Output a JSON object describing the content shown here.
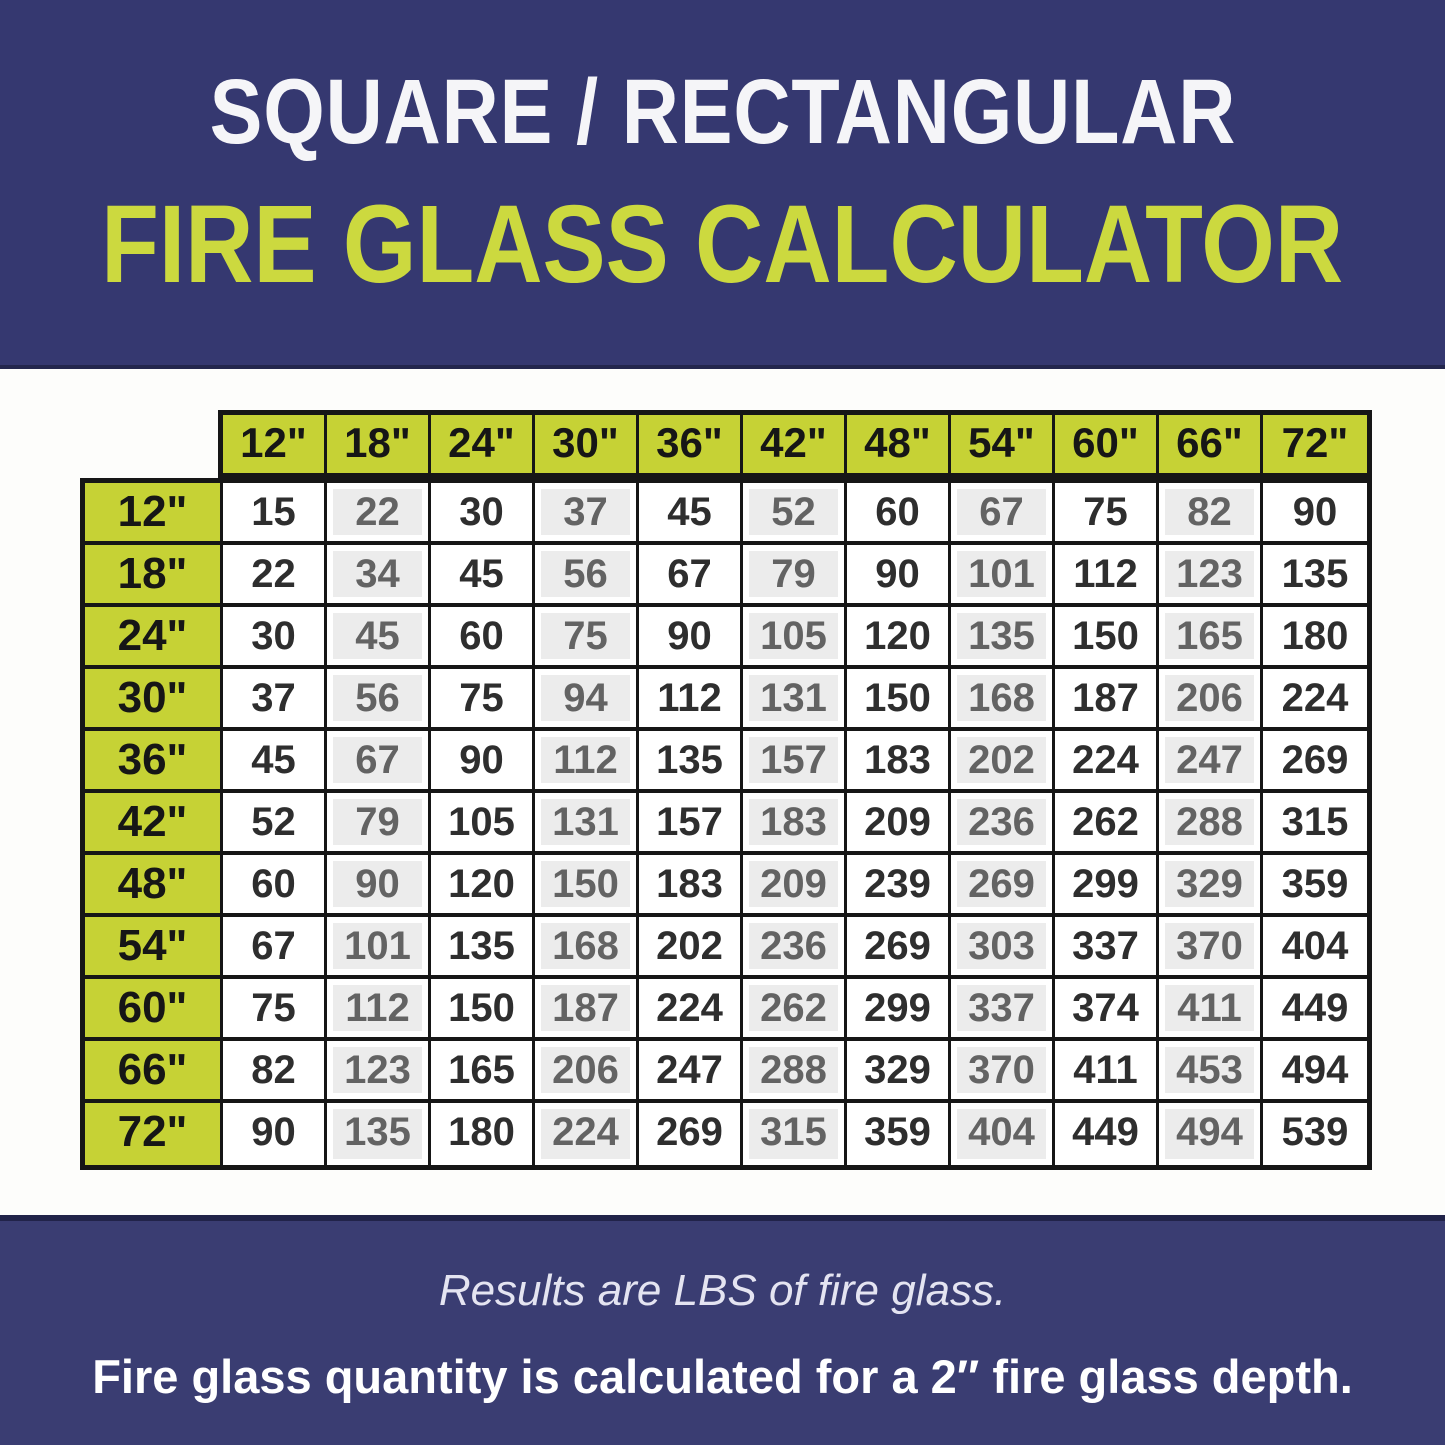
{
  "page": {
    "subtitle": "SQUARE / RECTANGULAR",
    "title": "FIRE GLASS CALCULATOR"
  },
  "chart_data": {
    "type": "table",
    "subtitle": "SQUARE / RECTANGULAR",
    "title": "FIRE GLASS CALCULATOR",
    "units": "LBS of fire glass",
    "depth_note": "2″ fire glass depth",
    "col_headers": [
      "12\"",
      "18\"",
      "24\"",
      "30\"",
      "36\"",
      "42\"",
      "48\"",
      "54\"",
      "60\"",
      "66\"",
      "72\""
    ],
    "row_headers": [
      "12\"",
      "18\"",
      "24\"",
      "30\"",
      "36\"",
      "42\"",
      "48\"",
      "54\"",
      "60\"",
      "66\"",
      "72\""
    ],
    "values": [
      [
        15,
        22,
        30,
        37,
        45,
        52,
        60,
        67,
        75,
        82,
        90
      ],
      [
        22,
        34,
        45,
        56,
        67,
        79,
        90,
        101,
        112,
        123,
        135
      ],
      [
        30,
        45,
        60,
        75,
        90,
        105,
        120,
        135,
        150,
        165,
        180
      ],
      [
        37,
        56,
        75,
        94,
        112,
        131,
        150,
        168,
        187,
        206,
        224
      ],
      [
        45,
        67,
        90,
        112,
        135,
        157,
        183,
        202,
        224,
        247,
        269
      ],
      [
        52,
        79,
        105,
        131,
        157,
        183,
        209,
        236,
        262,
        288,
        315
      ],
      [
        60,
        90,
        120,
        150,
        183,
        209,
        239,
        269,
        299,
        329,
        359
      ],
      [
        67,
        101,
        135,
        168,
        202,
        236,
        269,
        303,
        337,
        370,
        404
      ],
      [
        75,
        112,
        150,
        187,
        224,
        262,
        299,
        337,
        374,
        411,
        449
      ],
      [
        82,
        123,
        165,
        206,
        247,
        288,
        329,
        370,
        411,
        453,
        494
      ],
      [
        90,
        135,
        180,
        224,
        269,
        315,
        359,
        404,
        449,
        494,
        539
      ]
    ]
  },
  "footer": {
    "note": "Results are LBS of fire glass.",
    "caption": "Fire glass quantity is calculated for a 2″ fire glass depth."
  },
  "colors": {
    "navy_top": "#353870",
    "navy_bottom": "#3a3d72",
    "chartreuse": "#c6d235",
    "title_green": "#ccd93f",
    "border_black": "#161616",
    "alt_cell_gray": "#ececec"
  }
}
